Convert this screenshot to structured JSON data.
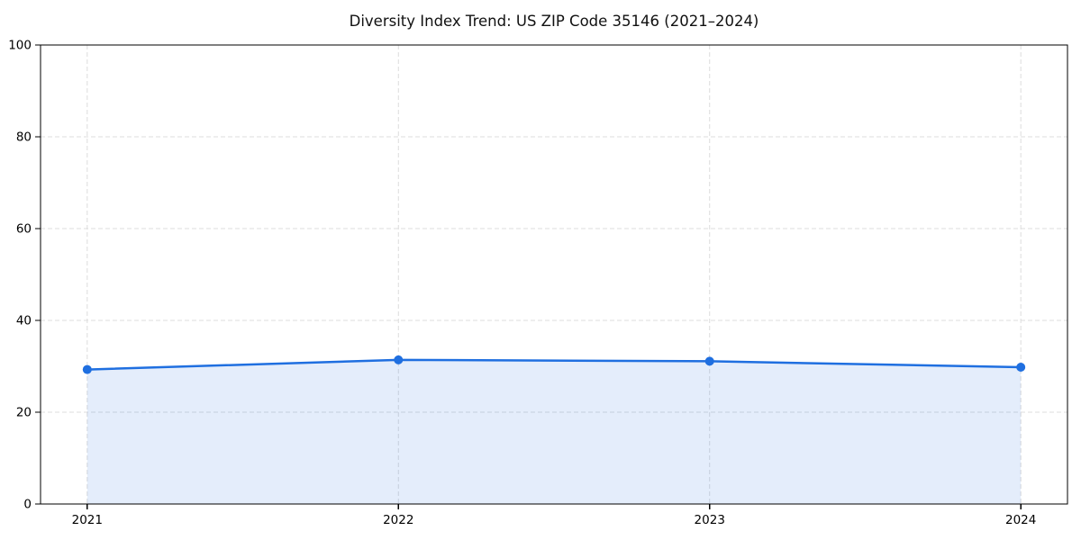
{
  "chart_data": {
    "type": "line",
    "title": "Diversity Index Trend: US ZIP Code 35146 (2021–2024)",
    "x": [
      2021,
      2022,
      2023,
      2024
    ],
    "xticks": [
      2021,
      2022,
      2023,
      2024
    ],
    "xtick_labels": [
      "2021",
      "2022",
      "2023",
      "2024"
    ],
    "series": [
      {
        "name": "Diversity Index",
        "values": [
          29.3,
          31.4,
          31.1,
          29.8
        ]
      }
    ],
    "xlabel": "",
    "ylabel": "",
    "ylim": [
      0,
      100
    ],
    "yticks": [
      0,
      20,
      40,
      60,
      80,
      100
    ],
    "ytick_labels": [
      "0",
      "20",
      "40",
      "60",
      "80",
      "100"
    ],
    "grid": true,
    "grid_style": "dashed",
    "legend_position": "none",
    "marker": "circle",
    "colors": {
      "line": "#1f6fe0",
      "marker": "#1f6fe0",
      "fill": "#1f6fe0",
      "fill_opacity": 0.12,
      "grid": "#dcdcdc",
      "spine": "#000000",
      "text": "#000000",
      "background": "#ffffff"
    }
  }
}
